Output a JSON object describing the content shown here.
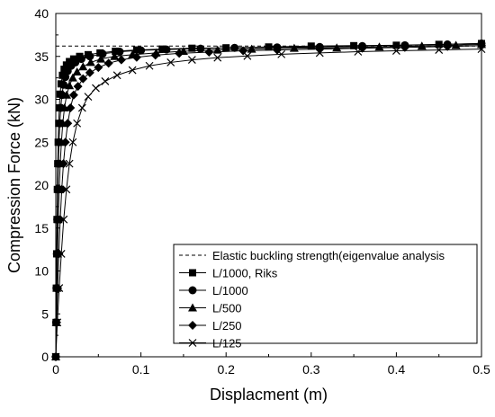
{
  "chart_data": {
    "type": "line",
    "xlabel": "Displacment (m)",
    "ylabel": "Compression Force (kN)",
    "xlim": [
      0,
      0.5
    ],
    "ylim": [
      0,
      40
    ],
    "x_ticks": [
      0,
      0.1,
      0.2,
      0.3,
      0.4,
      0.5
    ],
    "x_tick_labels": [
      "0",
      "0.1",
      "0.2",
      "0.3",
      "0.4",
      "0.5"
    ],
    "y_ticks": [
      0,
      5,
      10,
      15,
      20,
      25,
      30,
      35,
      40
    ],
    "y_tick_labels": [
      "0",
      "5",
      "10",
      "15",
      "20",
      "25",
      "30",
      "35",
      "40"
    ],
    "grid": false,
    "legend_position": "bottom-right",
    "reference_line": {
      "name": "Elastic buckling strength(eigenvalue analysis",
      "y": 36.2,
      "style": "dashed"
    },
    "series": [
      {
        "name": "L/1000, Riks",
        "marker": "square",
        "x": [
          0,
          0.0003,
          0.0006,
          0.001,
          0.0014,
          0.0018,
          0.0023,
          0.0028,
          0.0034,
          0.0041,
          0.005,
          0.0062,
          0.0078,
          0.0098,
          0.0125,
          0.016,
          0.021,
          0.028,
          0.038,
          0.052,
          0.07,
          0.095,
          0.125,
          0.16,
          0.2,
          0.25,
          0.3,
          0.35,
          0.4,
          0.45,
          0.5
        ],
        "y": [
          0,
          4,
          8,
          12,
          16,
          19.5,
          22.5,
          25,
          27.2,
          29,
          30.6,
          31.8,
          32.8,
          33.5,
          34,
          34.4,
          34.7,
          35,
          35.2,
          35.4,
          35.6,
          35.75,
          35.85,
          35.95,
          36.0,
          36.1,
          36.2,
          36.25,
          36.3,
          36.4,
          36.5
        ]
      },
      {
        "name": "L/1000",
        "marker": "circle",
        "x": [
          0,
          0.0004,
          0.0008,
          0.0013,
          0.0018,
          0.0024,
          0.003,
          0.0038,
          0.0047,
          0.0058,
          0.0072,
          0.009,
          0.0112,
          0.014,
          0.018,
          0.023,
          0.03,
          0.04,
          0.055,
          0.075,
          0.1,
          0.13,
          0.17,
          0.21,
          0.26,
          0.31,
          0.36,
          0.41,
          0.46,
          0.5
        ],
        "y": [
          0,
          4,
          8,
          12,
          16,
          19.5,
          22.5,
          25,
          27.2,
          29,
          30.5,
          31.7,
          32.6,
          33.3,
          33.9,
          34.3,
          34.7,
          35,
          35.3,
          35.55,
          35.7,
          35.8,
          35.9,
          36.0,
          36.05,
          36.1,
          36.2,
          36.3,
          36.4,
          36.5
        ]
      },
      {
        "name": "L/500",
        "marker": "triangle",
        "x": [
          0,
          0.0006,
          0.0013,
          0.0021,
          0.003,
          0.004,
          0.0052,
          0.0066,
          0.0082,
          0.0102,
          0.0127,
          0.016,
          0.02,
          0.025,
          0.032,
          0.041,
          0.053,
          0.069,
          0.09,
          0.118,
          0.15,
          0.19,
          0.23,
          0.28,
          0.33,
          0.38,
          0.43,
          0.47,
          0.5
        ],
        "y": [
          0,
          4,
          8,
          12,
          16,
          19.5,
          22.5,
          25,
          27.2,
          29,
          30.5,
          31.6,
          32.5,
          33.2,
          33.8,
          34.3,
          34.7,
          35.0,
          35.2,
          35.4,
          35.6,
          35.75,
          35.85,
          35.95,
          36.0,
          36.1,
          36.2,
          36.3,
          36.4
        ]
      },
      {
        "name": "L/250",
        "marker": "diamond",
        "x": [
          0,
          0.001,
          0.0022,
          0.0036,
          0.0052,
          0.007,
          0.009,
          0.0113,
          0.014,
          0.0172,
          0.021,
          0.026,
          0.032,
          0.04,
          0.05,
          0.062,
          0.077,
          0.095,
          0.117,
          0.145,
          0.18,
          0.22,
          0.26,
          0.31,
          0.36,
          0.41,
          0.46,
          0.5
        ],
        "y": [
          0,
          4,
          8,
          12,
          16,
          19.5,
          22.5,
          25,
          27.2,
          29,
          30.5,
          31.5,
          32.4,
          33.1,
          33.7,
          34.2,
          34.6,
          34.9,
          35.15,
          35.35,
          35.5,
          35.65,
          35.75,
          35.85,
          35.95,
          36.05,
          36.15,
          36.25
        ]
      },
      {
        "name": "L/125",
        "marker": "x",
        "x": [
          0,
          0.0018,
          0.004,
          0.0065,
          0.0093,
          0.0125,
          0.016,
          0.02,
          0.025,
          0.031,
          0.038,
          0.047,
          0.058,
          0.072,
          0.09,
          0.11,
          0.135,
          0.16,
          0.19,
          0.225,
          0.265,
          0.31,
          0.355,
          0.4,
          0.45,
          0.5
        ],
        "y": [
          0,
          4,
          8,
          12,
          16,
          19.5,
          22.5,
          25,
          27.2,
          29,
          30.3,
          31.3,
          32.1,
          32.8,
          33.4,
          33.9,
          34.3,
          34.6,
          34.85,
          35.05,
          35.25,
          35.4,
          35.55,
          35.65,
          35.75,
          35.85
        ]
      }
    ]
  }
}
